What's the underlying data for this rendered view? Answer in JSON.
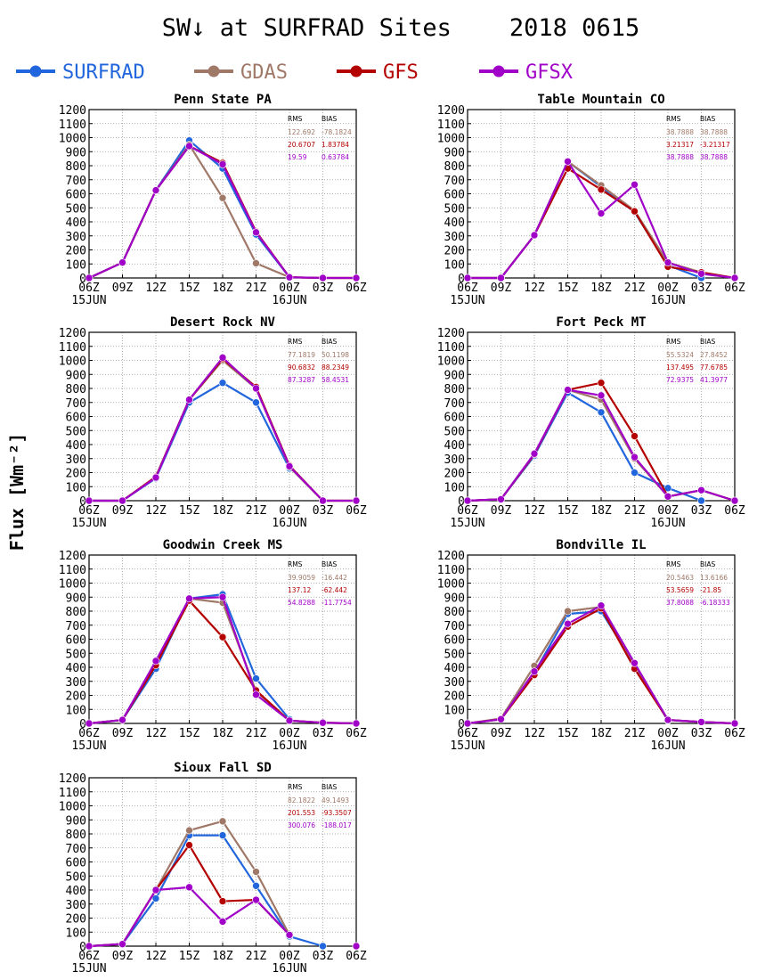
{
  "title": "SW↓ at SURFRAD Sites    2018 0615",
  "ylabel": "Flux [Wm⁻²]",
  "legend": [
    {
      "name": "SURFRAD",
      "color": "#2266dd"
    },
    {
      "name": "GDAS",
      "color": "#a07868"
    },
    {
      "name": "GFS",
      "color": "#b40000"
    },
    {
      "name": "GFSX",
      "color": "#a000c8"
    }
  ],
  "stats_header": {
    "rms": "RMS",
    "bias": "BIAS"
  },
  "chart_data": [
    {
      "type": "line",
      "title": "Penn State PA",
      "x": [
        "06Z",
        "09Z",
        "12Z",
        "15Z",
        "18Z",
        "21Z",
        "00Z",
        "03Z",
        "06Z"
      ],
      "x_sublabels": [
        "15JUN",
        "",
        "",
        "",
        "",
        "",
        "16JUN",
        "",
        ""
      ],
      "ylim": [
        0,
        1200
      ],
      "yticks": [
        0,
        100,
        200,
        300,
        400,
        500,
        600,
        700,
        800,
        900,
        1000,
        1100,
        1200
      ],
      "grid": true,
      "series": [
        {
          "name": "SURFRAD",
          "values": [
            0,
            110,
            625,
            980,
            780,
            310,
            5,
            null,
            null
          ]
        },
        {
          "name": "GDAS",
          "values": [
            0,
            110,
            625,
            950,
            570,
            105,
            5,
            0,
            0
          ]
        },
        {
          "name": "GFS",
          "values": [
            0,
            110,
            625,
            940,
            820,
            330,
            5,
            0,
            0
          ]
        },
        {
          "name": "GFSX",
          "values": [
            0,
            110,
            625,
            940,
            810,
            325,
            5,
            0,
            0
          ]
        }
      ],
      "stats": [
        {
          "rms": "122.692",
          "bias": "-78.1824"
        },
        {
          "rms": "20.6707",
          "bias": "1.83784"
        },
        {
          "rms": "19.59",
          "bias": "0.63784"
        }
      ]
    },
    {
      "type": "line",
      "title": "Table Mountain CO",
      "x": [
        "06Z",
        "09Z",
        "12Z",
        "15Z",
        "18Z",
        "21Z",
        "00Z",
        "03Z",
        "06Z"
      ],
      "x_sublabels": [
        "15JUN",
        "",
        "",
        "",
        "",
        "",
        "16JUN",
        "",
        ""
      ],
      "ylim": [
        0,
        1200
      ],
      "yticks": [
        0,
        100,
        200,
        300,
        400,
        500,
        600,
        700,
        800,
        900,
        1000,
        1100,
        1200
      ],
      "grid": true,
      "series": [
        {
          "name": "SURFRAD",
          "values": [
            0,
            0,
            305,
            830,
            650,
            470,
            90,
            0,
            null
          ]
        },
        {
          "name": "GDAS",
          "values": [
            0,
            0,
            305,
            830,
            660,
            480,
            110,
            40,
            0
          ]
        },
        {
          "name": "GFS",
          "values": [
            0,
            0,
            305,
            780,
            630,
            475,
            80,
            40,
            0
          ]
        },
        {
          "name": "GFSX",
          "values": [
            0,
            0,
            305,
            830,
            460,
            665,
            110,
            30,
            0
          ]
        }
      ],
      "stats": [
        {
          "rms": "38.7888",
          "bias": "38.7888"
        },
        {
          "rms": "3.21317",
          "bias": "-3.21317"
        },
        {
          "rms": "38.7888",
          "bias": "38.7888"
        }
      ]
    },
    {
      "type": "line",
      "title": "Desert Rock NV",
      "x": [
        "06Z",
        "09Z",
        "12Z",
        "15Z",
        "18Z",
        "21Z",
        "00Z",
        "03Z",
        "06Z"
      ],
      "x_sublabels": [
        "15JUN",
        "",
        "",
        "",
        "",
        "",
        "16JUN",
        "",
        ""
      ],
      "ylim": [
        0,
        1200
      ],
      "yticks": [
        0,
        100,
        200,
        300,
        400,
        500,
        600,
        700,
        800,
        900,
        1000,
        1100,
        1200
      ],
      "grid": true,
      "series": [
        {
          "name": "SURFRAD",
          "values": [
            0,
            0,
            160,
            700,
            840,
            700,
            230,
            null,
            null
          ]
        },
        {
          "name": "GDAS",
          "values": [
            0,
            0,
            170,
            720,
            1000,
            800,
            240,
            0,
            0
          ]
        },
        {
          "name": "GFS",
          "values": [
            0,
            0,
            170,
            720,
            1010,
            810,
            250,
            0,
            0
          ]
        },
        {
          "name": "GFSX",
          "values": [
            0,
            0,
            165,
            720,
            1020,
            800,
            245,
            0,
            0
          ]
        }
      ],
      "stats": [
        {
          "rms": "77.1819",
          "bias": "50.1198"
        },
        {
          "rms": "90.6832",
          "bias": "88.2349"
        },
        {
          "rms": "87.3287",
          "bias": "58.4531"
        }
      ]
    },
    {
      "type": "line",
      "title": "Fort Peck MT",
      "x": [
        "06Z",
        "09Z",
        "12Z",
        "15Z",
        "18Z",
        "21Z",
        "00Z",
        "03Z",
        "06Z"
      ],
      "x_sublabels": [
        "15JUN",
        "",
        "",
        "",
        "",
        "",
        "16JUN",
        "",
        ""
      ],
      "ylim": [
        0,
        1200
      ],
      "yticks": [
        0,
        100,
        200,
        300,
        400,
        500,
        600,
        700,
        800,
        900,
        1000,
        1100,
        1200
      ],
      "grid": true,
      "series": [
        {
          "name": "SURFRAD",
          "values": [
            0,
            10,
            320,
            770,
            630,
            200,
            90,
            0,
            null
          ]
        },
        {
          "name": "GDAS",
          "values": [
            0,
            10,
            330,
            790,
            720,
            300,
            30,
            75,
            0
          ]
        },
        {
          "name": "GFS",
          "values": [
            0,
            10,
            330,
            790,
            840,
            460,
            30,
            75,
            0
          ]
        },
        {
          "name": "GFSX",
          "values": [
            0,
            10,
            335,
            790,
            750,
            310,
            30,
            75,
            0
          ]
        }
      ],
      "stats": [
        {
          "rms": "55.5324",
          "bias": "27.8452"
        },
        {
          "rms": "137.495",
          "bias": "77.6785"
        },
        {
          "rms": "72.9375",
          "bias": "41.3977"
        }
      ]
    },
    {
      "type": "line",
      "title": "Goodwin Creek MS",
      "x": [
        "06Z",
        "09Z",
        "12Z",
        "15Z",
        "18Z",
        "21Z",
        "00Z",
        "03Z",
        "06Z"
      ],
      "x_sublabels": [
        "15JUN",
        "",
        "",
        "",
        "",
        "",
        "16JUN",
        "",
        ""
      ],
      "ylim": [
        0,
        1200
      ],
      "yticks": [
        0,
        100,
        200,
        300,
        400,
        500,
        600,
        700,
        800,
        900,
        1000,
        1100,
        1200
      ],
      "grid": true,
      "series": [
        {
          "name": "SURFRAD",
          "values": [
            0,
            25,
            390,
            890,
            920,
            320,
            30,
            null,
            null
          ]
        },
        {
          "name": "GDAS",
          "values": [
            0,
            25,
            430,
            890,
            860,
            230,
            20,
            5,
            0
          ]
        },
        {
          "name": "GFS",
          "values": [
            0,
            25,
            415,
            875,
            615,
            235,
            20,
            5,
            0
          ]
        },
        {
          "name": "GFSX",
          "values": [
            0,
            25,
            445,
            890,
            900,
            205,
            20,
            5,
            0
          ]
        }
      ],
      "stats": [
        {
          "rms": "39.9059",
          "bias": "-16.442"
        },
        {
          "rms": "137.12",
          "bias": "-62.442"
        },
        {
          "rms": "54.8288",
          "bias": "-11.7754"
        }
      ]
    },
    {
      "type": "line",
      "title": "Bondville IL",
      "x": [
        "06Z",
        "09Z",
        "12Z",
        "15Z",
        "18Z",
        "21Z",
        "00Z",
        "03Z",
        "06Z"
      ],
      "x_sublabels": [
        "15JUN",
        "",
        "",
        "",
        "",
        "",
        "16JUN",
        "",
        ""
      ],
      "ylim": [
        0,
        1200
      ],
      "yticks": [
        0,
        100,
        200,
        300,
        400,
        500,
        600,
        700,
        800,
        900,
        1000,
        1100,
        1200
      ],
      "grid": true,
      "series": [
        {
          "name": "SURFRAD",
          "values": [
            0,
            30,
            360,
            780,
            800,
            420,
            20,
            null,
            null
          ]
        },
        {
          "name": "GDAS",
          "values": [
            0,
            35,
            410,
            800,
            830,
            420,
            25,
            10,
            0
          ]
        },
        {
          "name": "GFS",
          "values": [
            0,
            30,
            345,
            690,
            820,
            390,
            25,
            10,
            0
          ]
        },
        {
          "name": "GFSX",
          "values": [
            0,
            30,
            370,
            710,
            840,
            430,
            25,
            10,
            0
          ]
        }
      ],
      "stats": [
        {
          "rms": "20.5463",
          "bias": "13.6166"
        },
        {
          "rms": "53.5659",
          "bias": "-21.85"
        },
        {
          "rms": "37.8088",
          "bias": "-6.18333"
        }
      ]
    },
    {
      "type": "line",
      "title": "Sioux Fall SD",
      "x": [
        "06Z",
        "09Z",
        "12Z",
        "15Z",
        "18Z",
        "21Z",
        "00Z",
        "03Z",
        "06Z"
      ],
      "x_sublabels": [
        "15JUN",
        "",
        "",
        "",
        "",
        "",
        "16JUN",
        "",
        ""
      ],
      "ylim": [
        0,
        1200
      ],
      "yticks": [
        0,
        100,
        200,
        300,
        400,
        500,
        600,
        700,
        800,
        900,
        1000,
        1100,
        1200
      ],
      "grid": true,
      "series": [
        {
          "name": "SURFRAD",
          "values": [
            0,
            15,
            340,
            790,
            790,
            430,
            70,
            0,
            null
          ]
        },
        {
          "name": "GDAS",
          "values": [
            0,
            15,
            400,
            825,
            890,
            530,
            80,
            null,
            0
          ]
        },
        {
          "name": "GFS",
          "values": [
            0,
            15,
            400,
            720,
            320,
            330,
            80,
            null,
            0
          ]
        },
        {
          "name": "GFSX",
          "values": [
            0,
            15,
            400,
            420,
            175,
            330,
            80,
            null,
            0
          ]
        }
      ],
      "stats": [
        {
          "rms": "82.1822",
          "bias": "49.1493"
        },
        {
          "rms": "201.553",
          "bias": "-93.3507"
        },
        {
          "rms": "300.076",
          "bias": "-188.017"
        }
      ]
    }
  ]
}
